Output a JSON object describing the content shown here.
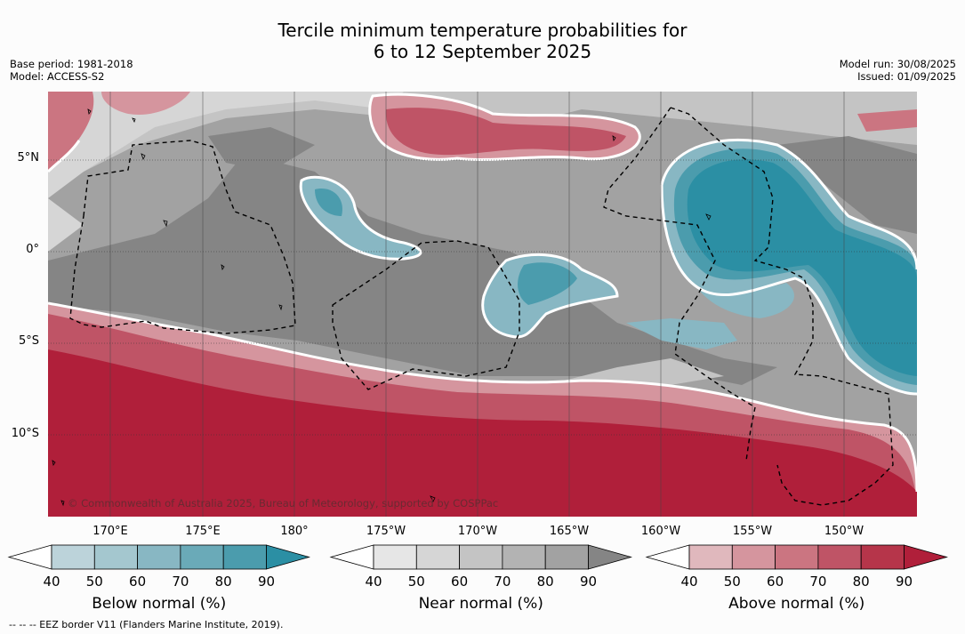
{
  "title_line1": "Tercile minimum temperature probabilities for",
  "title_line2": "6 to 12 September 2025",
  "meta_left": [
    "Base period: 1981-2018",
    "Model: ACCESS-S2"
  ],
  "meta_right": [
    "Model run: 30/08/2025",
    "Issued: 01/09/2025"
  ],
  "lat_labels": [
    "5°N",
    "0°",
    "5°S",
    "10°S"
  ],
  "lon_labels": [
    "170°E",
    "175°E",
    "180°",
    "175°W",
    "170°W",
    "165°W",
    "160°W",
    "155°W",
    "150°W"
  ],
  "copyright": "© Commonwealth of Australia 2025, Bureau of Meteorology, supported by COSPPac",
  "colorbars": [
    {
      "label": "Below normal (%)",
      "ticks": [
        "40",
        "50",
        "60",
        "70",
        "80",
        "90"
      ],
      "colors": [
        "#ffffff",
        "#bcd3da",
        "#a4c7cf",
        "#88b7c3",
        "#6aaab8",
        "#4b9cad",
        "#2b8fa4"
      ]
    },
    {
      "label": "Near normal (%)",
      "ticks": [
        "40",
        "50",
        "60",
        "70",
        "80",
        "90"
      ],
      "colors": [
        "#ffffff",
        "#e6e6e6",
        "#d6d6d6",
        "#c4c4c4",
        "#b3b3b3",
        "#a2a2a2",
        "#858585"
      ]
    },
    {
      "label": "Above normal (%)",
      "ticks": [
        "40",
        "50",
        "60",
        "70",
        "80",
        "90"
      ],
      "colors": [
        "#ffffff",
        "#e0b8bd",
        "#d5959e",
        "#cb7581",
        "#bf5466",
        "#b6354a",
        "#b01f3a"
      ]
    }
  ],
  "footer": "--  --  -- EEZ border V11 (Flanders Marine Institute, 2019)."
}
